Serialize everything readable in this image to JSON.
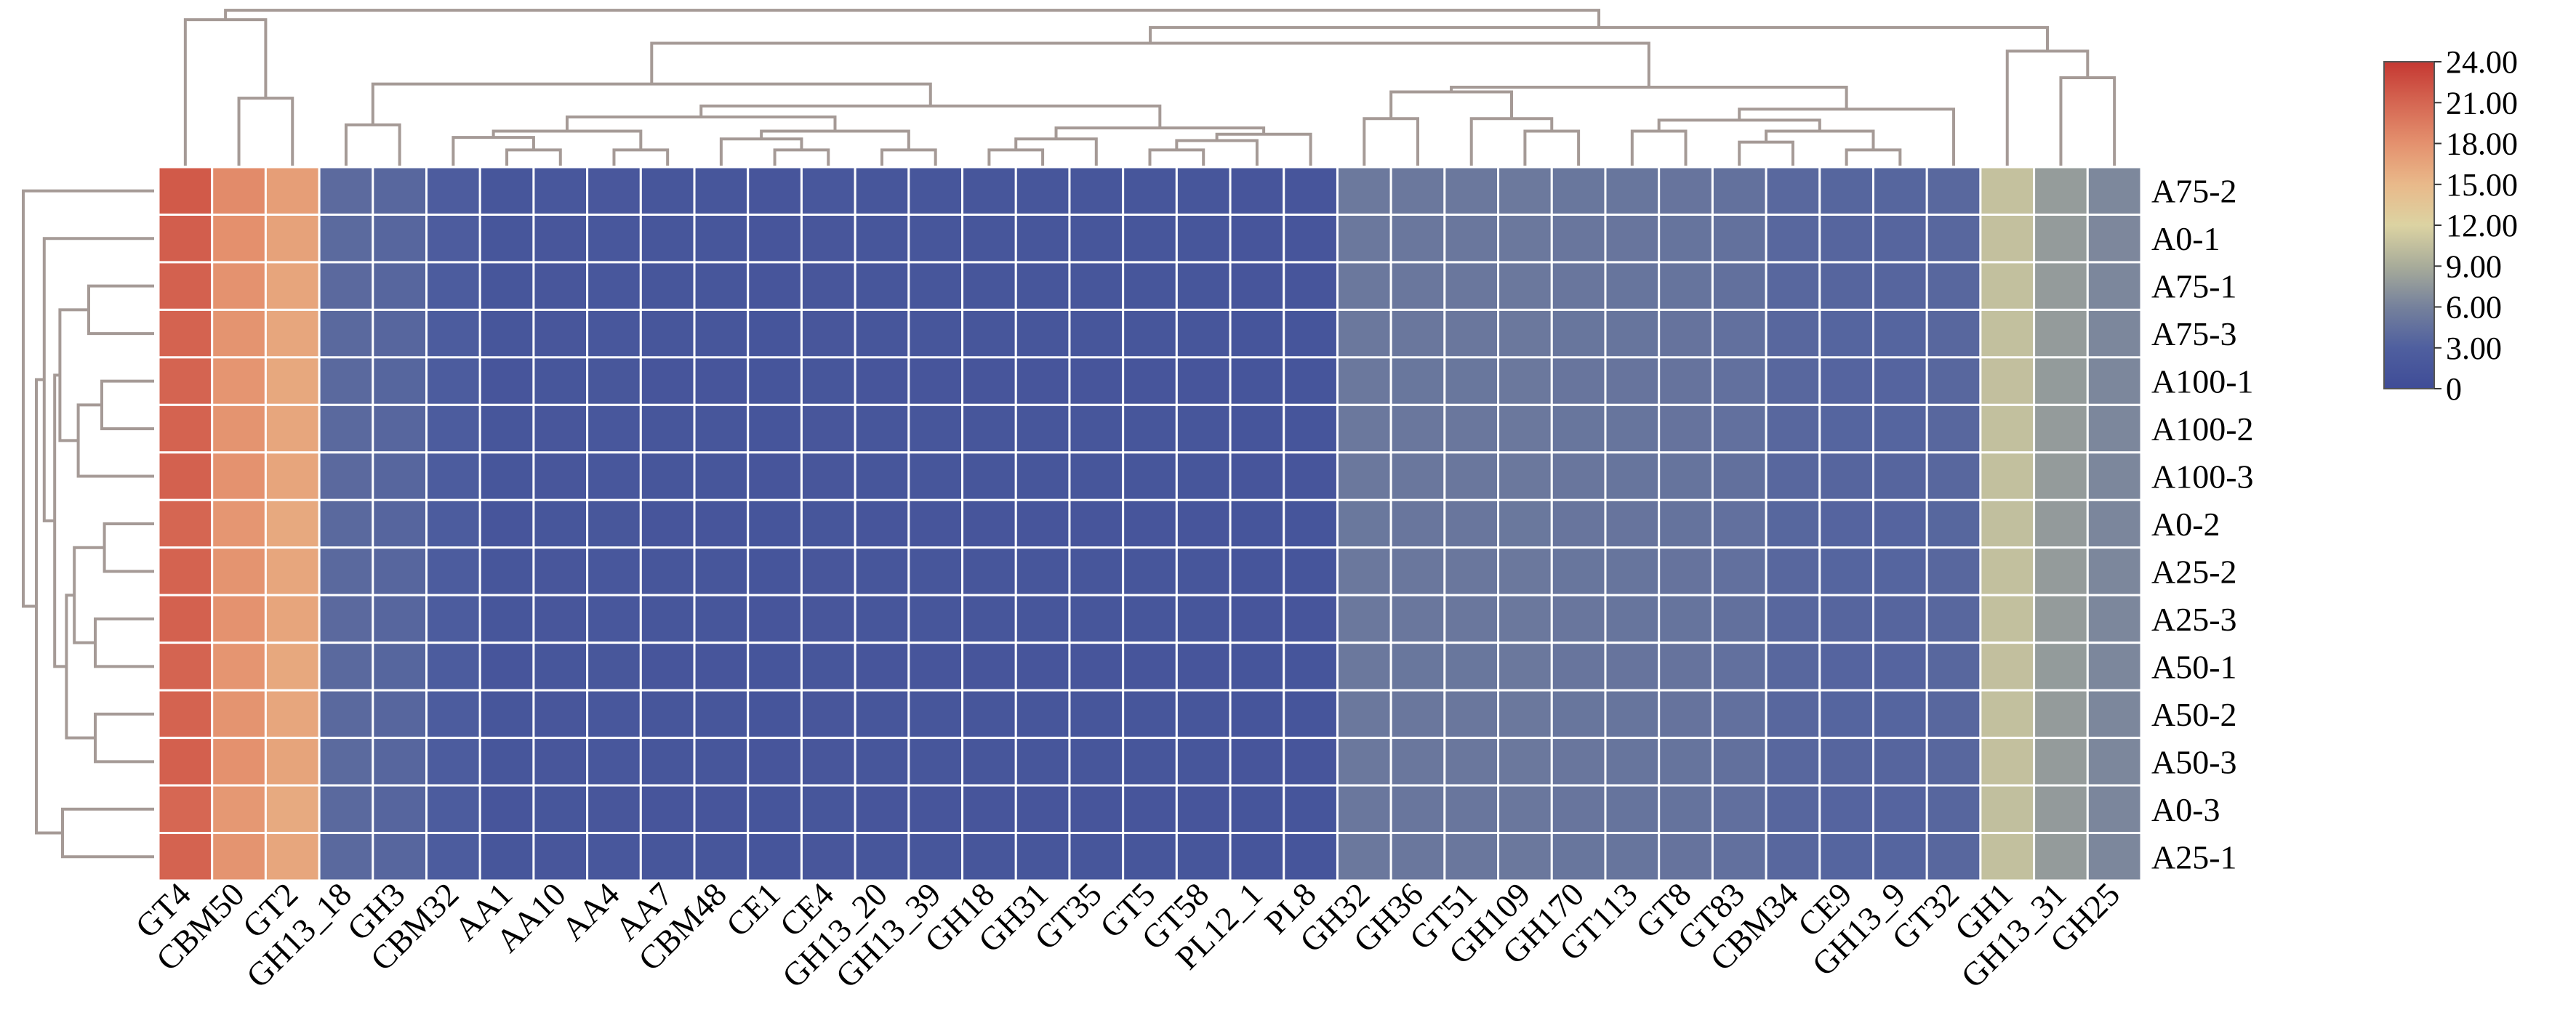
{
  "chart_data": {
    "type": "heatmap",
    "columns": [
      "GT4",
      "CBM50",
      "GT2",
      "GH13_18",
      "GH3",
      "CBM32",
      "AA1",
      "AA10",
      "AA4",
      "AA7",
      "CBM48",
      "CE1",
      "CE4",
      "GH13_20",
      "GH13_39",
      "GH18",
      "GH31",
      "GT35",
      "GT5",
      "GT58",
      "PL12_1",
      "PL8",
      "GH32",
      "GH36",
      "GT51",
      "GH109",
      "GH170",
      "GT113",
      "GT8",
      "GT83",
      "CBM34",
      "CE9",
      "GH13_9",
      "GT32",
      "GH1",
      "GH13_31",
      "GH25"
    ],
    "rows": [
      "A75-2",
      "A0-1",
      "A75-1",
      "A75-3",
      "A100-1",
      "A100-2",
      "A100-3",
      "A0-2",
      "A25-2",
      "A25-3",
      "A50-1",
      "A50-2",
      "A50-3",
      "A0-3",
      "A25-1"
    ],
    "column_means": [
      21.2,
      17.8,
      16.4,
      3.9,
      3.6,
      2.5,
      1.5,
      1.6,
      1.7,
      1.5,
      1.5,
      1.4,
      1.6,
      1.5,
      1.5,
      1.5,
      1.5,
      1.5,
      1.5,
      1.5,
      1.4,
      1.4,
      5.2,
      5.1,
      5.1,
      5.2,
      5.0,
      4.9,
      4.8,
      4.5,
      3.7,
      3.5,
      3.5,
      3.7,
      10.5,
      7.8,
      6.4
    ],
    "row_offsets": [
      0.6,
      0.3,
      0.1,
      0,
      -0.1,
      0,
      0.1,
      -0.2,
      0,
      0.1,
      -0.1,
      0,
      0.2,
      -0.3,
      0
    ],
    "colorbar": {
      "ticks": [
        "24.00",
        "21.00",
        "18.00",
        "15.00",
        "12.00",
        "9.00",
        "6.00",
        "3.00",
        "0"
      ],
      "range": [
        0,
        24
      ],
      "stops": [
        {
          "v": 0,
          "c": "#3f4c97"
        },
        {
          "v": 3,
          "c": "#4f5f9f"
        },
        {
          "v": 6,
          "c": "#75819c"
        },
        {
          "v": 9,
          "c": "#a8ac9a"
        },
        {
          "v": 12,
          "c": "#dcd3a2"
        },
        {
          "v": 15,
          "c": "#e9b98a"
        },
        {
          "v": 18,
          "c": "#e4916e"
        },
        {
          "v": 21,
          "c": "#d56652"
        },
        {
          "v": 24,
          "c": "#c53832"
        }
      ]
    },
    "grid_color": "#ffffff",
    "dendrogram_color": "#a59a96"
  }
}
